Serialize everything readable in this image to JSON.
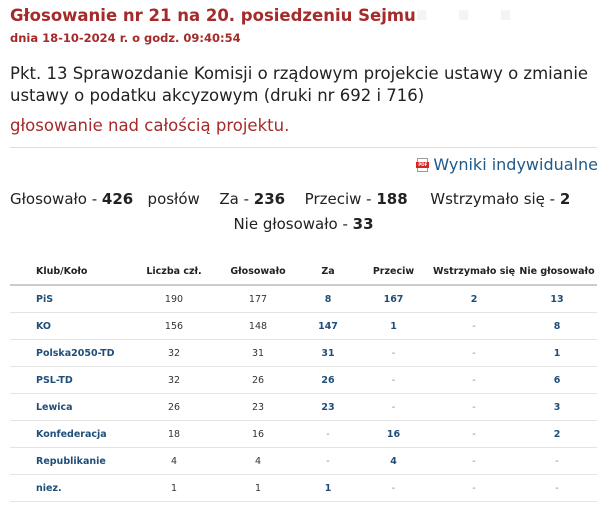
{
  "header": {
    "title": "Głosowanie nr 21 na 20. posiedzeniu Sejmu",
    "date": "dnia 18-10-2024 r. o godz. 09:40:54"
  },
  "item": {
    "description": "Pkt. 13 Sprawozdanie Komisji o rządowym projekcie ustawy o zmianie ustawy o podatku akcyzowym (druki nr 692 i 716)",
    "result_label": "głosowanie nad całością projektu."
  },
  "links": {
    "individual_results": "Wyniki indywidualne",
    "individual_results_icon": "pdf-icon"
  },
  "summary": {
    "voted_label": "Głosowało -",
    "voted_value": "426",
    "members_label": "posłów",
    "for_label": "Za -",
    "for_value": "236",
    "against_label": "Przeciw -",
    "against_value": "188",
    "abstained_label": "Wstrzymało się -",
    "abstained_value": "2",
    "not_voted_label": "Nie głosowało -",
    "not_voted_value": "33"
  },
  "table": {
    "headers": [
      "Klub/Koło",
      "Liczba czł.",
      "Głosowało",
      "Za",
      "Przeciw",
      "Wstrzymało się",
      "Nie głosowało"
    ],
    "rows": [
      [
        "PiS",
        "190",
        "177",
        "8",
        "167",
        "2",
        "13"
      ],
      [
        "KO",
        "156",
        "148",
        "147",
        "1",
        "-",
        "8"
      ],
      [
        "Polska2050-TD",
        "32",
        "31",
        "31",
        "-",
        "-",
        "1"
      ],
      [
        "PSL-TD",
        "32",
        "26",
        "26",
        "-",
        "-",
        "6"
      ],
      [
        "Lewica",
        "26",
        "23",
        "23",
        "-",
        "-",
        "3"
      ],
      [
        "Konfederacja",
        "18",
        "16",
        "-",
        "16",
        "-",
        "2"
      ],
      [
        "Republikanie",
        "4",
        "4",
        "-",
        "4",
        "-",
        "-"
      ],
      [
        "niez.",
        "1",
        "1",
        "1",
        "-",
        "-",
        "-"
      ]
    ]
  },
  "colors": {
    "title": "#a52a2a",
    "link": "#1f4e79",
    "text": "#222222"
  }
}
